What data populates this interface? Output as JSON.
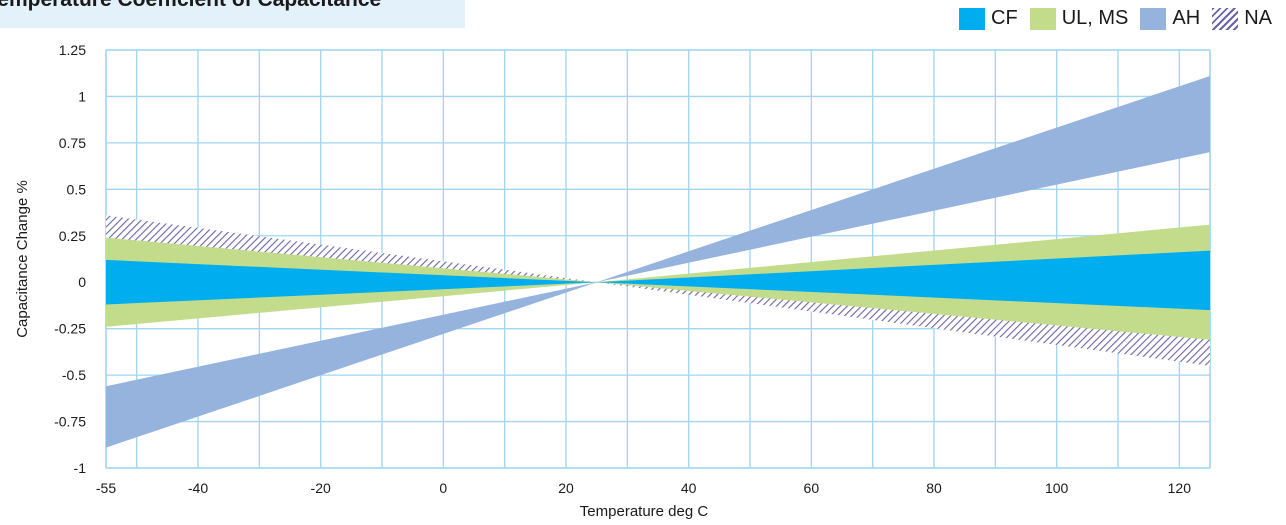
{
  "chart_data": {
    "type": "area",
    "title": "Temperature Coefficient of Capacitance",
    "xlabel": "Temperature deg C",
    "ylabel": "Capacitance Change %",
    "xlim": [
      -55,
      125
    ],
    "ylim": [
      -1,
      1.25
    ],
    "x_ticks": [
      -55,
      -40,
      -20,
      0,
      20,
      40,
      60,
      80,
      100,
      120
    ],
    "y_ticks": [
      1.25,
      1,
      0.75,
      0.5,
      0.25,
      0,
      -0.25,
      -0.5,
      -0.75,
      -1
    ],
    "x_tick_labels": [
      "-55",
      "-40",
      "-20",
      "0",
      "20",
      "40",
      "60",
      "80",
      "100",
      "120"
    ],
    "y_tick_labels": [
      "1.25",
      "1",
      "0.75",
      "0.5",
      "0.25",
      "0",
      "-0.25",
      "-0.5",
      "-0.75",
      "-1"
    ],
    "x_grid_step": 10,
    "y_grid_step": 0.25,
    "grid": true,
    "legend_position": "top-right",
    "pivot_x": 25,
    "series": [
      {
        "name": "AH",
        "color": "#95b3dc",
        "pattern": "solid",
        "x": [
          -55,
          25,
          125
        ],
        "upper": [
          -0.56,
          0,
          1.11
        ],
        "lower": [
          -0.89,
          0,
          0.7
        ]
      },
      {
        "name": "NA",
        "color": "#6b64a8",
        "pattern": "hatch",
        "x": [
          -55,
          25,
          125
        ],
        "upper": [
          0.36,
          0,
          -0.15
        ],
        "lower": [
          0.12,
          0,
          -0.45
        ]
      },
      {
        "name": "UL, MS",
        "color": "#c3dc8b",
        "pattern": "solid",
        "x": [
          -55,
          25,
          125
        ],
        "upper": [
          0.24,
          0,
          0.31
        ],
        "lower": [
          -0.24,
          0,
          -0.31
        ]
      },
      {
        "name": "CF",
        "color": "#00aeef",
        "pattern": "solid",
        "x": [
          -55,
          25,
          125
        ],
        "upper": [
          0.12,
          0,
          0.17
        ],
        "lower": [
          -0.12,
          0,
          -0.15
        ]
      }
    ],
    "legend": [
      {
        "label": "CF",
        "color": "#00aeef",
        "pattern": "solid"
      },
      {
        "label": "UL, MS",
        "color": "#c3dc8b",
        "pattern": "solid"
      },
      {
        "label": "AH",
        "color": "#95b3dc",
        "pattern": "solid"
      },
      {
        "label": "NA",
        "color": "#6b64a8",
        "pattern": "hatch"
      }
    ]
  },
  "colors": {
    "grid": "#9fd6f0",
    "title_background": "#e3f1fb",
    "text": "#1a1a1a"
  }
}
